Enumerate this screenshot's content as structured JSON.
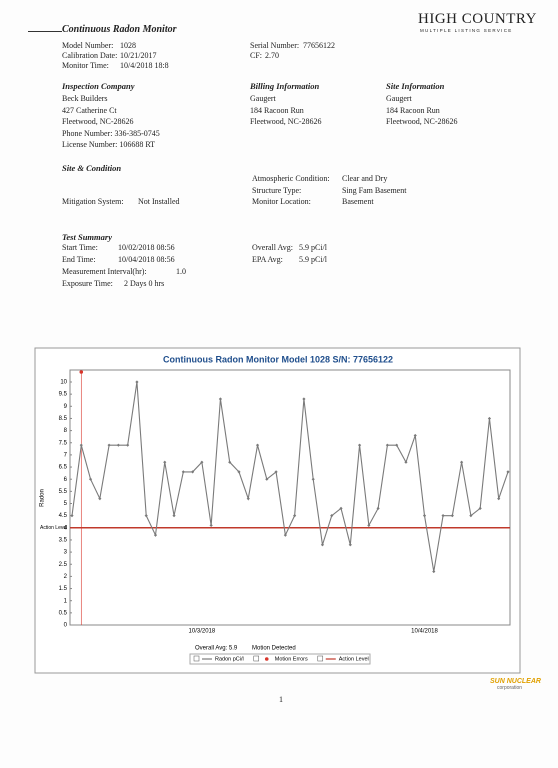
{
  "logo": {
    "title": "HIGH COUNTRY",
    "subtitle": "MULTIPLE LISTING SERVICE"
  },
  "header": {
    "title": "Continuous Radon Monitor",
    "fields": [
      {
        "label": "Model Number:",
        "value": "1028"
      },
      {
        "label": "Calibration Date:",
        "value": "10/21/2017"
      },
      {
        "label": "Monitor Time:",
        "value": "10/4/2018 18:8"
      }
    ],
    "fields_right": [
      {
        "label": "Serial Number:",
        "value": "77656122"
      },
      {
        "label": "CF:",
        "value": "2.70"
      }
    ]
  },
  "inspection_company": {
    "title": "Inspection Company",
    "lines": [
      "Beck Builders",
      "427 Catherine Ct",
      "Fleetwood, NC-28626",
      "Phone Number: 336-385-0745",
      "License Number: 106688 RT"
    ]
  },
  "billing": {
    "title": "Billing Information",
    "lines": [
      "Gaugert",
      "184 Racoon Run",
      "Fleetwood, NC-28626"
    ]
  },
  "site": {
    "title": "Site Information",
    "lines": [
      "Gaugert",
      "184 Racoon Run",
      "Fleetwood, NC-28626"
    ]
  },
  "site_condition": {
    "title": "Site & Condition",
    "fields": [
      {
        "label": "Atmospheric Condition:",
        "value": "Clear and Dry"
      },
      {
        "label": "Structure Type:",
        "value": "Sing Fam Basement"
      },
      {
        "label": "Monitor Location:",
        "value": "Basement"
      }
    ],
    "mitigation": {
      "label": "Mitigation System:",
      "value": "Not Installed"
    }
  },
  "test_summary": {
    "title": "Test Summary",
    "fields": [
      {
        "label": "Start Time:",
        "value": "10/02/2018 08:56"
      },
      {
        "label": "End Time:",
        "value": "10/04/2018 08:56"
      },
      {
        "label": "Measurement Interval(hr):",
        "value": "1.0"
      },
      {
        "label": "Exposure Time:",
        "value": "2 Days 0 hrs"
      }
    ],
    "averages": [
      {
        "label": "Overall Avg:",
        "value": "5.9 pCi/l"
      },
      {
        "label": "EPA Avg:",
        "value": "5.9 pCi/l"
      }
    ]
  },
  "chart_data": {
    "type": "line",
    "title": "Continuous Radon Monitor Model 1028 S/N: 77656122",
    "y_label": "Radon",
    "categories": [
      null,
      null,
      null,
      null,
      null,
      null,
      null,
      null,
      null,
      null,
      null,
      null,
      null,
      null,
      "10/3/2018",
      null,
      null,
      null,
      null,
      null,
      null,
      null,
      null,
      null,
      null,
      null,
      null,
      null,
      null,
      null,
      null,
      null,
      null,
      null,
      null,
      null,
      null,
      null,
      "10/4/2018",
      null,
      null,
      null,
      null,
      null,
      null,
      null,
      null,
      null
    ],
    "series": [
      {
        "name": "Radon pCi/l",
        "color": "#7a7a7a",
        "values": [
          4.5,
          7.4,
          6.0,
          5.2,
          7.4,
          7.4,
          7.4,
          10.0,
          4.5,
          3.7,
          6.7,
          4.5,
          6.3,
          6.3,
          6.7,
          4.1,
          9.3,
          6.7,
          6.3,
          5.2,
          7.4,
          6.0,
          6.3,
          3.7,
          4.5,
          9.3,
          6.0,
          3.3,
          4.5,
          4.8,
          3.3,
          7.4,
          4.1,
          4.8,
          7.4,
          7.4,
          6.7,
          7.8,
          4.5,
          2.2,
          4.5,
          4.5,
          6.7,
          4.5,
          4.8,
          8.5,
          5.2,
          6.3
        ]
      }
    ],
    "action_level": {
      "name": "Action Level",
      "label": "Action Level",
      "value": 4,
      "color": "#c0392b"
    },
    "motion_errors": {
      "name": "Motion Errors",
      "color": "#d9352b",
      "indices": [
        1
      ]
    },
    "overall_avg_label": "Overall Avg: 5.9",
    "motion_label": "Motion Detected",
    "ylim": [
      0,
      10
    ],
    "yticks": [
      0,
      0.5,
      1,
      1.5,
      2,
      2.5,
      3,
      3.5,
      4,
      4.5,
      5,
      5.5,
      6,
      6.5,
      7,
      7.5,
      8,
      8.5,
      9,
      9.5,
      10
    ],
    "grid": false
  },
  "page_number": "1",
  "footer_logo": {
    "title": "SUN NUCLEAR",
    "subtitle": "corporation"
  }
}
